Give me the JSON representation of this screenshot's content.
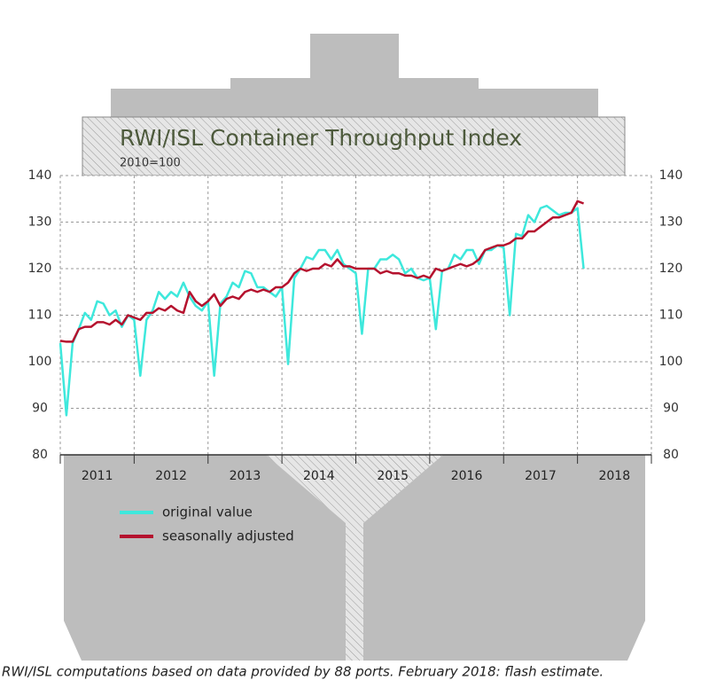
{
  "chart_data": {
    "type": "line",
    "title": "RWI/ISL Container Throughput Index",
    "subtitle": "2010=100",
    "footnote": "RWI/ISL computations based on data provided by 88 ports. February 2018: flash estimate.",
    "x": [
      2011,
      2011.083,
      2011.167,
      2011.25,
      2011.333,
      2011.417,
      2011.5,
      2011.583,
      2011.667,
      2011.75,
      2011.833,
      2011.917,
      2012,
      2012.083,
      2012.167,
      2012.25,
      2012.333,
      2012.417,
      2012.5,
      2012.583,
      2012.667,
      2012.75,
      2012.833,
      2012.917,
      2013,
      2013.083,
      2013.167,
      2013.25,
      2013.333,
      2013.417,
      2013.5,
      2013.583,
      2013.667,
      2013.75,
      2013.833,
      2013.917,
      2014,
      2014.083,
      2014.167,
      2014.25,
      2014.333,
      2014.417,
      2014.5,
      2014.583,
      2014.667,
      2014.75,
      2014.833,
      2014.917,
      2015,
      2015.083,
      2015.167,
      2015.25,
      2015.333,
      2015.417,
      2015.5,
      2015.583,
      2015.667,
      2015.75,
      2015.833,
      2015.917,
      2016,
      2016.083,
      2016.167,
      2016.25,
      2016.333,
      2016.417,
      2016.5,
      2016.583,
      2016.667,
      2016.75,
      2016.833,
      2016.917,
      2017,
      2017.083,
      2017.167,
      2017.25,
      2017.333,
      2017.417,
      2017.5,
      2017.583,
      2017.667,
      2017.75,
      2017.833,
      2017.917,
      2018,
      2018.083
    ],
    "series": [
      {
        "name": "original value",
        "color": "#3ee8dc",
        "values": [
          104,
          88.5,
          104,
          107,
          110.5,
          109,
          113,
          112.5,
          110,
          111,
          107.5,
          110,
          109,
          97,
          109,
          111,
          115,
          113.5,
          115,
          114,
          117,
          114,
          112,
          111,
          113,
          97,
          112.5,
          114,
          117,
          116,
          119.5,
          119,
          116,
          116,
          115,
          114,
          116,
          99.5,
          118,
          120,
          122.5,
          122,
          124,
          124,
          122,
          124,
          121,
          120,
          119,
          106,
          120,
          120,
          122,
          122,
          123,
          122,
          119,
          120,
          118,
          117.5,
          118,
          107,
          119.5,
          120,
          123,
          122,
          124,
          124,
          121,
          124,
          124,
          125,
          124.5,
          110,
          127.5,
          127,
          131.5,
          130,
          133,
          133.5,
          132.5,
          131.5,
          132,
          132,
          133,
          120
        ]
      },
      {
        "name": "seasonally adjusted",
        "color": "#b5122e",
        "values": [
          104.5,
          104.3,
          104.3,
          107,
          107.5,
          107.5,
          108.5,
          108.5,
          108,
          109,
          108,
          110,
          109.5,
          109,
          110.5,
          110.5,
          111.5,
          111,
          112,
          111,
          110.5,
          115,
          113,
          112,
          113,
          114.5,
          112,
          113.5,
          114,
          113.5,
          115,
          115.5,
          115,
          115.5,
          115,
          116,
          116,
          117,
          119,
          120,
          119.5,
          120,
          120,
          121,
          120.5,
          122,
          120.5,
          120.5,
          120,
          120,
          120,
          120,
          119,
          119.5,
          119,
          119,
          118.5,
          118.5,
          118,
          118.5,
          118,
          120,
          119.5,
          120,
          120.5,
          121,
          120.5,
          121,
          122,
          124,
          124.5,
          125,
          125,
          125.5,
          126.5,
          126.5,
          128,
          128,
          129,
          130,
          131,
          131,
          131.5,
          132,
          134.5,
          134
        ]
      }
    ],
    "xlim": [
      2011,
      2019
    ],
    "xticks": [
      {
        "value": 2011.5,
        "label": "2011"
      },
      {
        "value": 2012.5,
        "label": "2012"
      },
      {
        "value": 2013.5,
        "label": "2013"
      },
      {
        "value": 2014.5,
        "label": "2014"
      },
      {
        "value": 2015.5,
        "label": "2015"
      },
      {
        "value": 2016.5,
        "label": "2016"
      },
      {
        "value": 2017.5,
        "label": "2017"
      },
      {
        "value": 2018.5,
        "label": "2018"
      }
    ],
    "xgrid_ticks": [
      2011,
      2012,
      2013,
      2014,
      2015,
      2016,
      2017,
      2018,
      2019
    ],
    "ylim": [
      80,
      140
    ],
    "yticks": [
      80,
      90,
      100,
      110,
      120,
      130,
      140
    ],
    "y2lim": [
      80,
      140
    ],
    "y2ticks": [
      80,
      90,
      100,
      110,
      120,
      130,
      140
    ],
    "grid": true,
    "legend": "bottom-left"
  }
}
